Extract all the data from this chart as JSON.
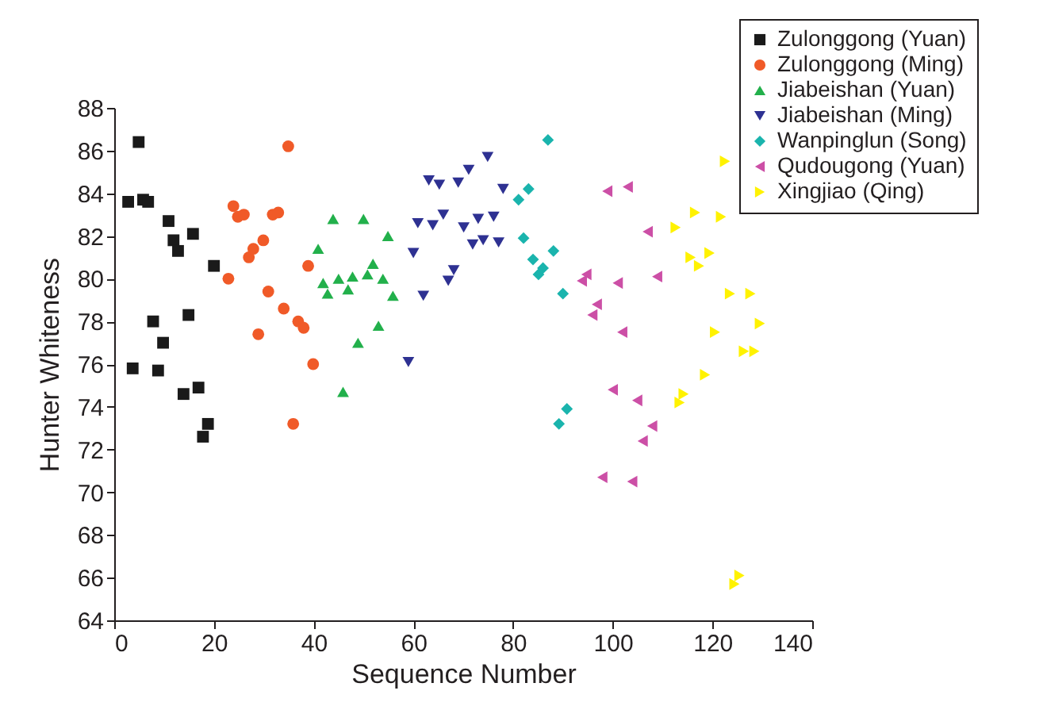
{
  "chart_data": {
    "type": "scatter",
    "xlabel": "Sequence Number",
    "ylabel": "Hunter Whiteness",
    "xlim": [
      0,
      140
    ],
    "xticks": [
      0,
      20,
      40,
      60,
      80,
      100,
      120,
      140
    ],
    "ylim": [
      64,
      88
    ],
    "yticks": [
      64,
      66,
      68,
      70,
      72,
      74,
      76,
      78,
      80,
      82,
      84,
      86,
      88
    ],
    "grid": false,
    "legend": "top right",
    "series": [
      {
        "name": "Zulonggong (Yuan)",
        "color": "#1a1a1a",
        "marker": "square",
        "x": [
          2.8,
          3.7,
          4.9,
          5.8,
          6.8,
          7.8,
          8.8,
          9.8,
          10.9,
          11.9,
          12.8,
          13.9,
          14.9,
          15.8,
          16.9,
          17.8,
          18.8,
          20.0
        ],
        "values": [
          83.6,
          75.8,
          86.4,
          83.7,
          83.6,
          78.0,
          75.7,
          77.0,
          82.7,
          81.8,
          81.3,
          74.6,
          78.3,
          82.1,
          74.9,
          72.6,
          73.2,
          80.6
        ]
      },
      {
        "name": "Zulonggong (Ming)",
        "color": "#f05a28",
        "marker": "circle",
        "x": [
          22.9,
          23.9,
          24.8,
          26.0,
          27.0,
          27.9,
          28.9,
          29.9,
          30.9,
          31.8,
          32.9,
          34.0,
          34.9,
          35.9,
          36.9,
          38.0,
          38.9,
          39.9
        ],
        "values": [
          80.0,
          83.4,
          82.9,
          83.0,
          81.0,
          81.4,
          77.4,
          81.8,
          79.4,
          83.0,
          83.1,
          78.6,
          86.2,
          73.2,
          78.0,
          77.7,
          80.6,
          76.0
        ]
      },
      {
        "name": "Jiabeishan (Yuan)",
        "color": "#22b04b",
        "marker": "triangle-up",
        "x": [
          40.9,
          41.9,
          42.8,
          43.9,
          45.0,
          45.9,
          46.9,
          47.8,
          48.9,
          50.0,
          50.8,
          51.9,
          53.0,
          53.9,
          54.9,
          55.9
        ],
        "values": [
          81.4,
          79.8,
          79.3,
          82.8,
          80.0,
          74.7,
          79.5,
          80.1,
          77.0,
          82.8,
          80.2,
          80.7,
          77.8,
          80.0,
          82.0,
          79.2
        ]
      },
      {
        "name": "Jiabeishan (Ming)",
        "color": "#2e3192",
        "marker": "triangle-down",
        "x": [
          59.0,
          60.0,
          60.9,
          62.0,
          63.1,
          63.9,
          65.2,
          66.0,
          67.0,
          68.1,
          69.0,
          70.1,
          71.1,
          71.9,
          73.0,
          74.0,
          74.9,
          76.1,
          77.1,
          78.0
        ],
        "values": [
          76.1,
          81.2,
          82.6,
          79.2,
          84.6,
          82.5,
          84.4,
          83.0,
          79.9,
          80.4,
          84.5,
          82.4,
          85.1,
          81.6,
          82.8,
          81.8,
          85.7,
          82.9,
          81.7,
          84.2
        ]
      },
      {
        "name": "Wanpinglun (Song)",
        "color": "#1ab4ad",
        "marker": "diamond",
        "x": [
          81.1,
          82.1,
          83.1,
          84.0,
          85.1,
          86.0,
          87.0,
          88.1,
          89.2,
          90.0,
          90.8
        ],
        "values": [
          83.7,
          81.9,
          84.2,
          80.9,
          80.2,
          80.5,
          86.5,
          81.3,
          73.2,
          79.3,
          73.9
        ]
      },
      {
        "name": "Qudougong (Yuan)",
        "color": "#cc4fa6",
        "marker": "triangle-left",
        "x": [
          93.8,
          94.7,
          95.9,
          96.8,
          97.9,
          98.9,
          100.0,
          101.0,
          101.9,
          103.0,
          103.9,
          104.9,
          106.0,
          107.0,
          107.9,
          108.9
        ],
        "values": [
          79.9,
          80.2,
          78.3,
          78.8,
          70.7,
          84.1,
          74.8,
          79.8,
          77.5,
          84.3,
          70.5,
          74.3,
          72.4,
          82.2,
          73.1,
          80.1
        ]
      },
      {
        "name": "Xingjiao (Qing)",
        "color": "#fff200",
        "marker": "triangle-right",
        "x": [
          112.6,
          113.4,
          114.2,
          115.6,
          116.5,
          117.3,
          118.5,
          119.4,
          120.5,
          121.7,
          122.5,
          123.5,
          124.4,
          125.4,
          126.3,
          127.6,
          128.4,
          129.5
        ],
        "values": [
          82.4,
          74.2,
          74.6,
          81.0,
          83.1,
          80.6,
          75.5,
          81.2,
          77.5,
          82.9,
          85.5,
          79.3,
          65.7,
          66.1,
          76.6,
          79.3,
          76.6,
          77.9
        ]
      }
    ]
  }
}
